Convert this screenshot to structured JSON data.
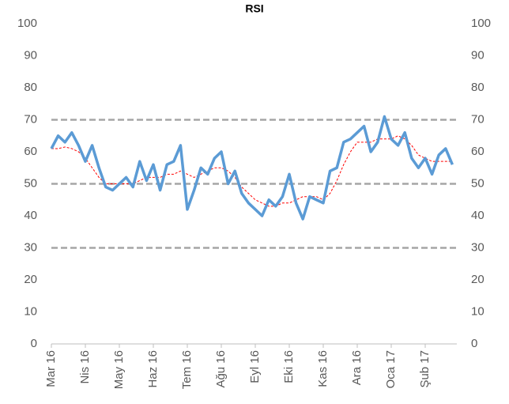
{
  "chart_data": {
    "type": "line",
    "title": "RSI",
    "categories": [
      "Mar 16",
      null,
      null,
      null,
      null,
      "Nis 16",
      null,
      null,
      null,
      null,
      "May 16",
      null,
      null,
      null,
      null,
      "Haz 16",
      null,
      null,
      null,
      null,
      "Tem 16",
      null,
      null,
      null,
      null,
      "Ağu 16",
      null,
      null,
      null,
      null,
      "Eyl 16",
      null,
      null,
      null,
      null,
      "Eki 16",
      null,
      null,
      null,
      null,
      "Kas 16",
      null,
      null,
      null,
      null,
      "Ara 16",
      null,
      null,
      null,
      null,
      "Oca 17",
      null,
      null,
      null,
      null,
      "Şub 17",
      null,
      null,
      null,
      null
    ],
    "series": [
      {
        "color": "#5b9bd5",
        "values": [
          61,
          65,
          63,
          66,
          62,
          57,
          62,
          55,
          49,
          48,
          50,
          52,
          49,
          57,
          51,
          56,
          48,
          56,
          57,
          62,
          42,
          48,
          55,
          53,
          58,
          60,
          50,
          54,
          47,
          44,
          42,
          40,
          45,
          43,
          46,
          53,
          44,
          39,
          46,
          45,
          44,
          54,
          55,
          63,
          64,
          66,
          68,
          60,
          63,
          71,
          64,
          62,
          66,
          58,
          55,
          58,
          53,
          59,
          61,
          56
        ]
      },
      {
        "color": "#ff0000",
        "dashed": true,
        "values": [
          61,
          61,
          61.5,
          61,
          60,
          58,
          55,
          52,
          50,
          50,
          50,
          50,
          50,
          51,
          52,
          52,
          52,
          53,
          53,
          54,
          53,
          52,
          53,
          54,
          55,
          55,
          54,
          52,
          49,
          47,
          45,
          44,
          43,
          43,
          44,
          44,
          45,
          46,
          46,
          46,
          45,
          47,
          51,
          56,
          60,
          63,
          63,
          63,
          64,
          64,
          64,
          65,
          64,
          62,
          59,
          58,
          57,
          57,
          57,
          57
        ]
      }
    ],
    "ylim": [
      0,
      100
    ],
    "yticks": [
      0,
      10,
      20,
      30,
      40,
      50,
      60,
      70,
      80,
      90,
      100
    ],
    "y2lim": [
      0,
      100
    ],
    "y2ticks": [
      0,
      10,
      20,
      30,
      40,
      50,
      60,
      70,
      80,
      90,
      100
    ],
    "ref_lines": [
      30,
      50,
      70
    ],
    "ref_color": "#a6a6a6"
  }
}
